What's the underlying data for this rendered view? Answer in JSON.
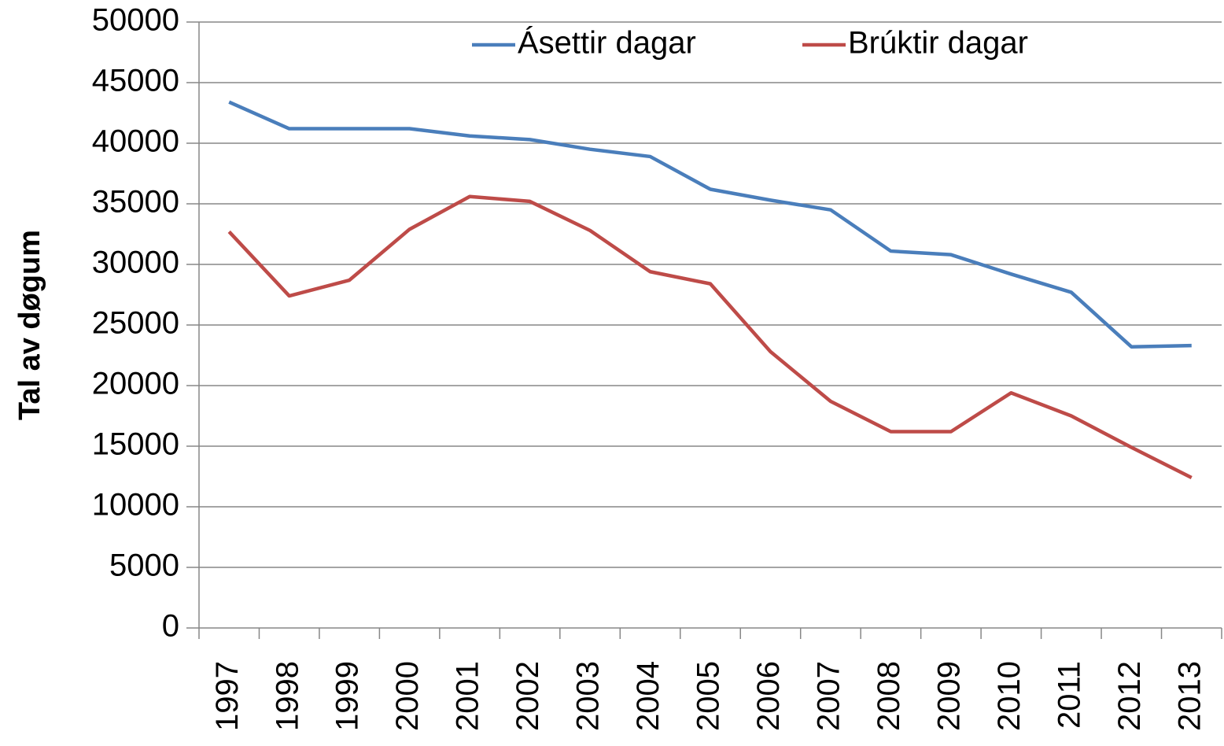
{
  "chart_data": {
    "type": "line",
    "y_label": "Tal av døgum",
    "categories": [
      "1997",
      "1998",
      "1999",
      "2000",
      "2001",
      "2002",
      "2003",
      "2004",
      "2005",
      "2006",
      "2007",
      "2008",
      "2009",
      "2010",
      "2011",
      "2012",
      "2013"
    ],
    "series": [
      {
        "name": "Ásettir dagar",
        "color": "#4a7ebb",
        "values": [
          43400,
          41200,
          41200,
          41200,
          40600,
          40300,
          39500,
          38900,
          36200,
          35300,
          34500,
          31100,
          30800,
          29200,
          27700,
          23200,
          23300
        ]
      },
      {
        "name": "Brúktir dagar",
        "color": "#be4b48",
        "values": [
          32700,
          27400,
          28700,
          32900,
          35600,
          35200,
          32800,
          29400,
          28400,
          22800,
          18700,
          16200,
          16200,
          19400,
          17500,
          14900,
          12400
        ]
      }
    ],
    "ylim": [
      0,
      50000
    ],
    "yticks": [
      0,
      5000,
      10000,
      15000,
      20000,
      25000,
      30000,
      35000,
      40000,
      45000,
      50000
    ],
    "grid": true,
    "legend": "top"
  }
}
